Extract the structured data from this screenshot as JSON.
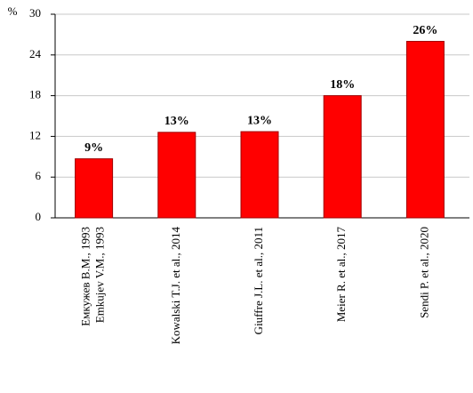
{
  "chart_data": {
    "type": "bar",
    "y_unit": "%",
    "categories": [
      [
        "Емкужев В.М., 1993",
        "Emkujev V.M., 1993"
      ],
      [
        "Kowalski T.J. et al., 2014"
      ],
      [
        "Giuffre J.L. et al., 2011"
      ],
      [
        "Meier R. et al., 2017"
      ],
      [
        "Sendi P. et al., 2020"
      ]
    ],
    "values": [
      8.7,
      12.6,
      12.7,
      18,
      26
    ],
    "value_labels": [
      "9%",
      "13%",
      "13%",
      "18%",
      "26%"
    ],
    "color": "#ff0000",
    "ylim": [
      0,
      30
    ],
    "yticks": [
      0,
      6,
      12,
      18,
      24,
      30
    ],
    "grid": true
  }
}
